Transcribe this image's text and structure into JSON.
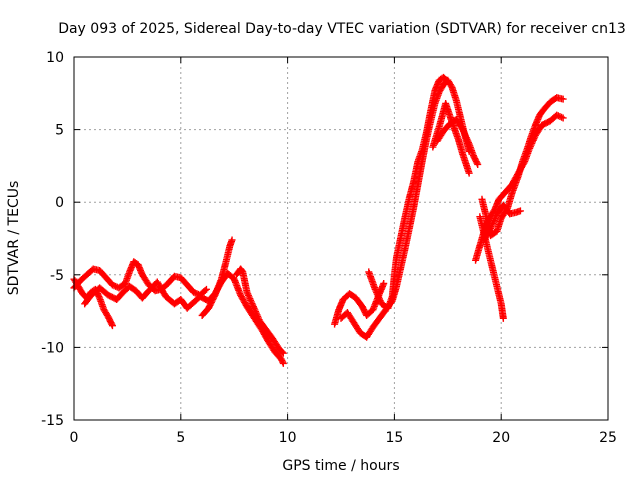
{
  "chart_data": {
    "type": "scatter",
    "title": "Day 093 of 2025, Sidereal Day-to-day VTEC variation (SDTVAR) for receiver cn13",
    "xlabel": "GPS time / hours",
    "ylabel": "SDTVAR / TECUs",
    "xlim": [
      0,
      25
    ],
    "ylim": [
      -15,
      10
    ],
    "xticks": [
      0,
      5,
      10,
      15,
      20,
      25
    ],
    "yticks": [
      -15,
      -10,
      -5,
      0,
      5,
      10
    ],
    "grid": true,
    "marker": "plus",
    "color": "#ff0000",
    "series": [
      {
        "name": "SDTVAR",
        "tracks": [
          [
            [
              0.0,
              -5.3
            ],
            [
              0.2,
              -5.8
            ],
            [
              0.4,
              -6.3
            ],
            [
              0.6,
              -6.6
            ],
            [
              0.8,
              -6.2
            ],
            [
              1.0,
              -6.0
            ],
            [
              1.2,
              -6.6
            ],
            [
              1.4,
              -7.4
            ],
            [
              1.6,
              -7.9
            ],
            [
              1.8,
              -8.5
            ]
          ],
          [
            [
              0.0,
              -5.9
            ],
            [
              0.3,
              -5.4
            ],
            [
              0.6,
              -5.0
            ],
            [
              0.9,
              -4.6
            ],
            [
              1.2,
              -4.7
            ],
            [
              1.5,
              -5.2
            ],
            [
              1.8,
              -5.7
            ],
            [
              2.1,
              -5.9
            ],
            [
              2.4,
              -5.6
            ],
            [
              2.6,
              -4.8
            ],
            [
              2.8,
              -4.1
            ],
            [
              3.0,
              -4.3
            ],
            [
              3.2,
              -5.0
            ],
            [
              3.5,
              -5.7
            ],
            [
              3.8,
              -6.1
            ],
            [
              4.1,
              -6.0
            ],
            [
              4.4,
              -5.6
            ],
            [
              4.7,
              -5.1
            ],
            [
              5.0,
              -5.2
            ],
            [
              5.3,
              -5.7
            ],
            [
              5.6,
              -6.2
            ],
            [
              5.9,
              -6.4
            ],
            [
              6.2,
              -6.0
            ]
          ],
          [
            [
              0.5,
              -7.0
            ],
            [
              0.8,
              -6.4
            ],
            [
              1.2,
              -5.9
            ],
            [
              1.6,
              -6.4
            ],
            [
              2.0,
              -6.7
            ],
            [
              2.3,
              -6.2
            ],
            [
              2.6,
              -5.8
            ],
            [
              2.9,
              -6.1
            ],
            [
              3.2,
              -6.6
            ],
            [
              3.5,
              -6.1
            ],
            [
              3.9,
              -5.5
            ],
            [
              4.3,
              -6.5
            ],
            [
              4.7,
              -7.0
            ],
            [
              5.0,
              -6.7
            ],
            [
              5.3,
              -7.3
            ],
            [
              5.6,
              -6.9
            ],
            [
              5.9,
              -6.5
            ],
            [
              6.3,
              -6.8
            ],
            [
              6.6,
              -6.3
            ],
            [
              6.9,
              -5.5
            ],
            [
              7.2,
              -4.9
            ],
            [
              7.5,
              -5.3
            ],
            [
              7.8,
              -6.4
            ],
            [
              8.1,
              -7.2
            ],
            [
              8.4,
              -7.9
            ],
            [
              8.8,
              -8.8
            ],
            [
              9.1,
              -9.6
            ],
            [
              9.4,
              -10.3
            ],
            [
              9.7,
              -10.8
            ],
            [
              9.8,
              -11.1
            ]
          ],
          [
            [
              6.0,
              -7.8
            ],
            [
              6.3,
              -7.3
            ],
            [
              6.6,
              -6.4
            ],
            [
              6.9,
              -5.3
            ],
            [
              7.1,
              -4.2
            ],
            [
              7.3,
              -3.0
            ],
            [
              7.4,
              -2.6
            ]
          ],
          [
            [
              7.6,
              -5.0
            ],
            [
              7.8,
              -4.6
            ],
            [
              7.9,
              -4.8
            ],
            [
              8.1,
              -6.2
            ],
            [
              8.4,
              -7.2
            ],
            [
              8.7,
              -8.2
            ],
            [
              9.0,
              -8.8
            ],
            [
              9.3,
              -9.4
            ],
            [
              9.6,
              -10.1
            ],
            [
              9.8,
              -10.4
            ]
          ],
          [
            [
              12.2,
              -8.4
            ],
            [
              12.4,
              -7.4
            ],
            [
              12.6,
              -6.7
            ],
            [
              12.9,
              -6.3
            ],
            [
              13.2,
              -6.6
            ],
            [
              13.5,
              -7.2
            ],
            [
              13.7,
              -7.8
            ],
            [
              14.0,
              -7.4
            ],
            [
              14.3,
              -6.3
            ],
            [
              14.5,
              -5.6
            ]
          ],
          [
            [
              12.5,
              -8.0
            ],
            [
              12.8,
              -7.6
            ],
            [
              13.1,
              -8.3
            ],
            [
              13.4,
              -9.0
            ],
            [
              13.7,
              -9.3
            ],
            [
              14.0,
              -8.6
            ],
            [
              14.3,
              -8.0
            ],
            [
              14.6,
              -7.4
            ],
            [
              14.9,
              -6.8
            ],
            [
              15.1,
              -5.8
            ],
            [
              15.3,
              -4.5
            ],
            [
              15.5,
              -3.2
            ],
            [
              15.7,
              -1.8
            ],
            [
              15.9,
              -0.4
            ],
            [
              16.1,
              1.2
            ],
            [
              16.3,
              2.8
            ],
            [
              16.5,
              4.3
            ],
            [
              16.7,
              5.6
            ],
            [
              16.9,
              6.8
            ],
            [
              17.1,
              7.6
            ],
            [
              17.3,
              8.1
            ],
            [
              17.5,
              8.4
            ],
            [
              17.7,
              7.9
            ],
            [
              17.9,
              7.0
            ],
            [
              18.1,
              5.8
            ],
            [
              18.3,
              4.6
            ],
            [
              18.5,
              3.5
            ]
          ],
          [
            [
              13.8,
              -4.8
            ],
            [
              14.1,
              -6.0
            ],
            [
              14.4,
              -7.0
            ],
            [
              14.7,
              -7.3
            ],
            [
              14.9,
              -6.5
            ],
            [
              15.0,
              -5.0
            ],
            [
              15.1,
              -3.8
            ],
            [
              15.3,
              -2.4
            ],
            [
              15.5,
              -1.0
            ],
            [
              15.7,
              0.3
            ],
            [
              15.9,
              1.4
            ],
            [
              16.1,
              2.8
            ],
            [
              16.3,
              3.6
            ],
            [
              16.5,
              4.8
            ],
            [
              16.7,
              6.3
            ],
            [
              16.9,
              7.7
            ],
            [
              17.1,
              8.4
            ],
            [
              17.3,
              8.6
            ],
            [
              17.5,
              8.3
            ]
          ],
          [
            [
              17.0,
              4.2
            ],
            [
              17.3,
              4.9
            ],
            [
              17.6,
              5.4
            ],
            [
              17.9,
              5.7
            ],
            [
              18.2,
              5.0
            ],
            [
              18.5,
              4.0
            ],
            [
              18.7,
              3.2
            ],
            [
              18.9,
              2.6
            ]
          ],
          [
            [
              16.8,
              3.8
            ],
            [
              17.1,
              5.2
            ],
            [
              17.4,
              6.8
            ],
            [
              17.7,
              5.5
            ],
            [
              18.0,
              4.3
            ],
            [
              18.2,
              3.3
            ],
            [
              18.5,
              2.0
            ]
          ],
          [
            [
              19.0,
              -1.0
            ],
            [
              19.2,
              -2.2
            ],
            [
              19.4,
              -3.4
            ],
            [
              19.6,
              -4.6
            ],
            [
              19.8,
              -5.8
            ],
            [
              20.0,
              -7.0
            ],
            [
              20.1,
              -8.0
            ]
          ],
          [
            [
              19.1,
              0.2
            ],
            [
              19.3,
              -1.0
            ],
            [
              19.5,
              -2.3
            ],
            [
              19.8,
              -2.0
            ],
            [
              20.0,
              -1.1
            ],
            [
              20.3,
              -0.4
            ],
            [
              20.5,
              0.6
            ],
            [
              20.8,
              1.8
            ],
            [
              21.0,
              2.8
            ],
            [
              21.2,
              3.6
            ],
            [
              21.4,
              4.5
            ],
            [
              21.6,
              5.3
            ],
            [
              21.8,
              6.0
            ],
            [
              22.0,
              6.4
            ],
            [
              22.3,
              6.9
            ],
            [
              22.6,
              7.2
            ],
            [
              22.9,
              7.1
            ]
          ],
          [
            [
              18.8,
              -4.0
            ],
            [
              19.0,
              -3.0
            ],
            [
              19.2,
              -2.0
            ],
            [
              19.4,
              -1.2
            ],
            [
              19.7,
              -0.5
            ],
            [
              19.9,
              0.2
            ],
            [
              20.2,
              0.7
            ],
            [
              20.5,
              1.2
            ],
            [
              20.8,
              2.0
            ],
            [
              21.1,
              2.8
            ],
            [
              21.3,
              3.6
            ],
            [
              21.6,
              4.6
            ],
            [
              21.9,
              5.3
            ],
            [
              22.3,
              5.6
            ],
            [
              22.6,
              6.0
            ],
            [
              22.9,
              5.8
            ]
          ],
          [
            [
              19.2,
              -2.6
            ],
            [
              19.5,
              -1.8
            ],
            [
              19.8,
              -0.8
            ],
            [
              20.1,
              -0.2
            ],
            [
              20.4,
              -0.8
            ],
            [
              20.7,
              -0.7
            ],
            [
              20.9,
              -0.6
            ]
          ]
        ]
      }
    ]
  }
}
